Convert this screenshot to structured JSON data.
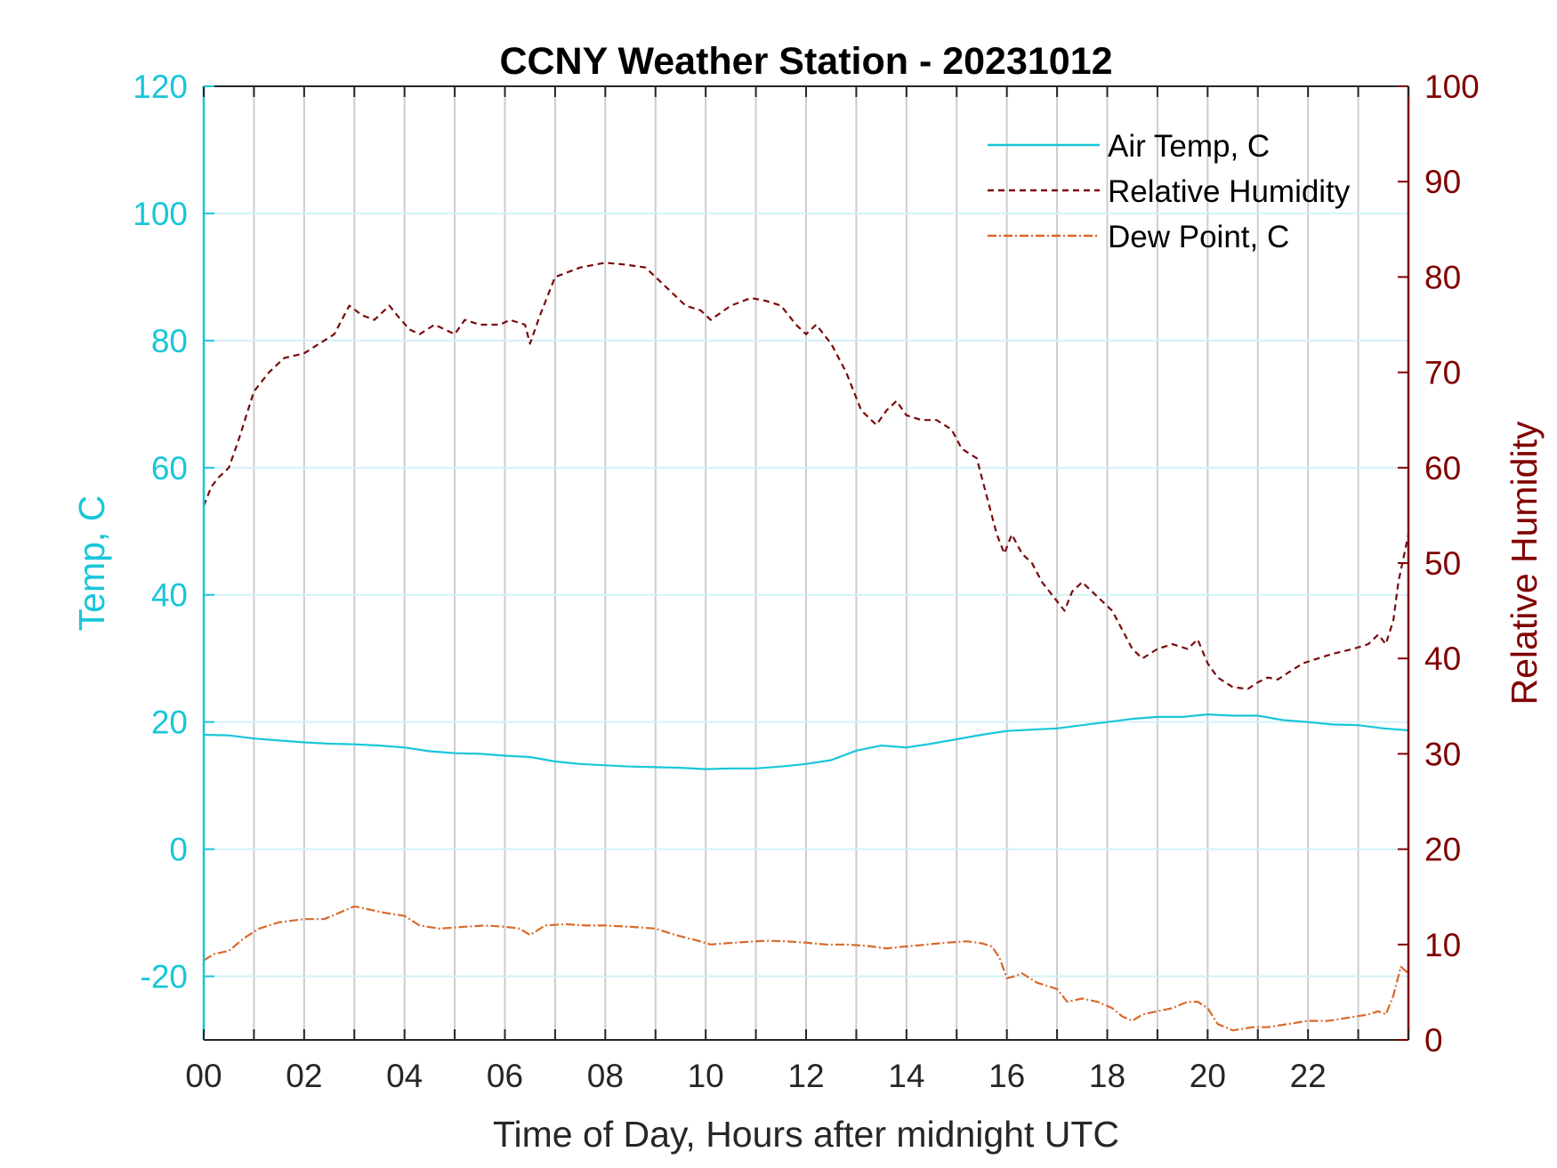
{
  "chart_data": {
    "type": "line",
    "title": "CCNY Weather Station - 20231012",
    "xlabel": "Time of Day, Hours after midnight UTC",
    "ylabel_left": "Temp, C",
    "ylabel_right": "Relative Humidity",
    "xlim": [
      0,
      24
    ],
    "ylim_left": [
      -30,
      120
    ],
    "ylim_right": [
      0,
      100
    ],
    "x_ticks": [
      0,
      2,
      4,
      6,
      8,
      10,
      12,
      14,
      16,
      18,
      20,
      22
    ],
    "x_tick_labels": [
      "00",
      "02",
      "04",
      "06",
      "08",
      "10",
      "12",
      "14",
      "16",
      "18",
      "20",
      "22"
    ],
    "left_ticks": [
      -20,
      0,
      20,
      40,
      60,
      80,
      100,
      120
    ],
    "left_tick_labels": [
      "-20",
      "0",
      "20",
      "40",
      "60",
      "80",
      "100",
      "120"
    ],
    "right_ticks": [
      0,
      10,
      20,
      30,
      40,
      50,
      60,
      70,
      80,
      90,
      100
    ],
    "right_tick_labels": [
      "0",
      "10",
      "20",
      "30",
      "40",
      "50",
      "60",
      "70",
      "80",
      "90",
      "100"
    ],
    "grid": true,
    "legend_position": "top-right",
    "colors": {
      "air_temp": "#19c6d8",
      "humidity": "#7a0a0a",
      "dew_point": "#d9692a",
      "right_axis": "#800000",
      "hgrid": "#d2f2f6",
      "vgrid": "#cccccc"
    },
    "series": [
      {
        "name": "Air Temp, C",
        "axis": "left",
        "style": "solid",
        "x": [
          0,
          0.5,
          1,
          1.5,
          2,
          2.5,
          3,
          3.5,
          4,
          4.5,
          5,
          5.5,
          6,
          6.5,
          7,
          7.5,
          8,
          8.5,
          9,
          9.5,
          10,
          10.5,
          11,
          11.5,
          12,
          12.5,
          13,
          13.5,
          14,
          14.5,
          15,
          15.5,
          16,
          16.5,
          17,
          17.5,
          18,
          18.5,
          19,
          19.5,
          20,
          20.5,
          21,
          21.5,
          22,
          22.5,
          23,
          23.5,
          24
        ],
        "y": [
          18,
          17.9,
          17.4,
          17.1,
          16.8,
          16.6,
          16.5,
          16.3,
          16,
          15.4,
          15.1,
          15,
          14.7,
          14.5,
          13.8,
          13.4,
          13.2,
          13,
          12.9,
          12.8,
          12.6,
          12.7,
          12.7,
          13,
          13.4,
          14,
          15.5,
          16.3,
          16,
          16.6,
          17.3,
          18,
          18.6,
          18.8,
          19,
          19.5,
          20,
          20.5,
          20.8,
          20.8,
          21.2,
          21,
          21,
          20.3,
          20,
          19.6,
          19.5,
          19,
          18.7
        ]
      },
      {
        "name": "Relative Humidity",
        "axis": "right",
        "style": "dashed",
        "x": [
          0,
          0.15,
          0.3,
          0.5,
          0.7,
          1,
          1.3,
          1.6,
          2,
          2.3,
          2.6,
          2.9,
          3.15,
          3.4,
          3.7,
          3.85,
          4.1,
          4.3,
          4.6,
          5,
          5.2,
          5.5,
          5.9,
          6.1,
          6.4,
          6.5,
          6.7,
          7,
          7.5,
          8,
          8.4,
          8.8,
          9.2,
          9.6,
          9.9,
          10.1,
          10.5,
          10.9,
          11.2,
          11.5,
          11.8,
          12,
          12.2,
          12.5,
          12.8,
          13.1,
          13.4,
          13.6,
          13.8,
          14,
          14.3,
          14.6,
          14.9,
          15.1,
          15.4,
          15.6,
          15.8,
          15.95,
          16.1,
          16.3,
          16.5,
          16.7,
          17,
          17.15,
          17.3,
          17.5,
          17.7,
          17.9,
          18.1,
          18.3,
          18.5,
          18.7,
          19,
          19.3,
          19.6,
          19.8,
          20,
          20.2,
          20.5,
          20.8,
          21,
          21.2,
          21.4,
          21.6,
          21.9,
          22.2,
          22.5,
          22.9,
          23.2,
          23.4,
          23.55,
          23.7,
          23.8,
          24
        ],
        "y": [
          56,
          58,
          59,
          60,
          63,
          68,
          70,
          71.5,
          72,
          73,
          74,
          77,
          76,
          75.5,
          77,
          76,
          74.5,
          74,
          75,
          74,
          75.5,
          75,
          75,
          75.5,
          75,
          73,
          76,
          80,
          81,
          81.5,
          81.3,
          81,
          79,
          77,
          76.5,
          75.5,
          77,
          77.8,
          77.5,
          77,
          75,
          74,
          75,
          73,
          70,
          66,
          64.5,
          66,
          67,
          65.5,
          65,
          65,
          64,
          62,
          61,
          57,
          53,
          51,
          53,
          51,
          50,
          48,
          46,
          45,
          47,
          48,
          47,
          46,
          45,
          43,
          41,
          40,
          41,
          41.5,
          41,
          42,
          39.5,
          38,
          37,
          36.8,
          37.5,
          38,
          37.8,
          38.5,
          39.5,
          40,
          40.5,
          41,
          41.5,
          42.5,
          41.5,
          44,
          48,
          53
        ]
      },
      {
        "name": "Dew Point, C",
        "axis": "left",
        "style": "dashdot",
        "x": [
          0,
          0.2,
          0.5,
          0.8,
          1.1,
          1.5,
          2,
          2.4,
          2.7,
          3,
          3.3,
          3.6,
          4,
          4.3,
          4.7,
          5.2,
          5.6,
          6,
          6.3,
          6.5,
          6.8,
          7.2,
          7.6,
          8,
          8.5,
          9,
          9.4,
          9.8,
          10.1,
          10.4,
          10.8,
          11.2,
          11.6,
          12,
          12.4,
          12.8,
          13.2,
          13.6,
          14,
          14.4,
          14.8,
          15.2,
          15.5,
          15.7,
          15.85,
          16,
          16.15,
          16.3,
          16.6,
          17,
          17.2,
          17.5,
          17.8,
          18.1,
          18.3,
          18.5,
          18.7,
          19,
          19.3,
          19.6,
          19.8,
          20,
          20.2,
          20.5,
          20.9,
          21.2,
          21.6,
          22,
          22.4,
          22.8,
          23.2,
          23.4,
          23.55,
          23.7,
          23.85,
          24
        ],
        "y": [
          -17.5,
          -16.5,
          -16,
          -14,
          -12.5,
          -11.5,
          -11,
          -11,
          -10,
          -9,
          -9.5,
          -10,
          -10.5,
          -12,
          -12.5,
          -12.2,
          -12,
          -12.2,
          -12.5,
          -13.5,
          -12,
          -11.8,
          -12,
          -12,
          -12.2,
          -12.5,
          -13.5,
          -14.3,
          -15,
          -14.8,
          -14.6,
          -14.4,
          -14.5,
          -14.7,
          -15,
          -15,
          -15.2,
          -15.6,
          -15.3,
          -15,
          -14.7,
          -14.5,
          -14.8,
          -15.3,
          -17,
          -20.3,
          -20,
          -19.5,
          -21,
          -22,
          -24,
          -23.5,
          -24,
          -25,
          -26.3,
          -27,
          -26,
          -25.5,
          -25,
          -24,
          -24,
          -25,
          -27.5,
          -28.5,
          -28,
          -28,
          -27.5,
          -27,
          -27,
          -26.5,
          -26,
          -25.5,
          -26,
          -23,
          -18.5,
          -19.5
        ]
      }
    ]
  }
}
